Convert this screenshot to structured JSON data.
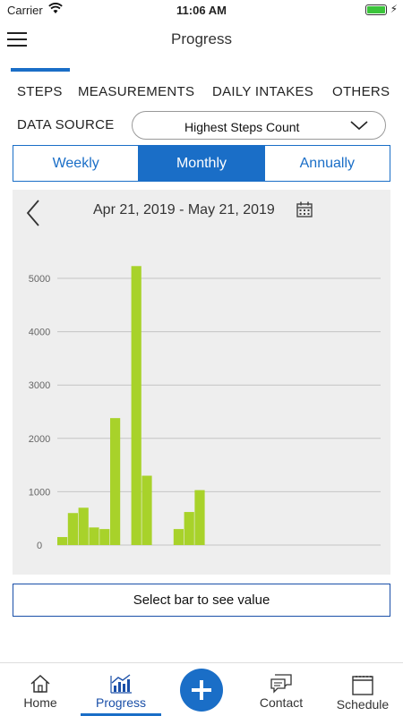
{
  "status_bar": {
    "carrier": "Carrier",
    "time": "11:06 AM"
  },
  "header": {
    "title": "Progress"
  },
  "tabs": [
    {
      "label": "STEPS",
      "active": true
    },
    {
      "label": "MEASUREMENTS"
    },
    {
      "label": "DAILY INTAKES"
    },
    {
      "label": "OTHERS"
    }
  ],
  "data_source": {
    "label": "DATA SOURCE",
    "value": "Highest Steps Count"
  },
  "period": {
    "options": [
      "Weekly",
      "Monthly",
      "Annually"
    ],
    "selected": "Monthly"
  },
  "chart_header": {
    "date_range": "Apr 21, 2019 - May 21, 2019"
  },
  "chart_data": {
    "type": "bar",
    "ylim": [
      0,
      5500
    ],
    "yticks": [
      0,
      1000,
      2000,
      3000,
      4000,
      5000
    ],
    "grid": true,
    "bar_color": "#a8d22a",
    "values": [
      150,
      600,
      700,
      330,
      300,
      2380,
      0,
      5230,
      1300,
      0,
      0,
      300,
      620,
      1030,
      0,
      0,
      0,
      0,
      0,
      0,
      0,
      0,
      0,
      0,
      0,
      0,
      0,
      0,
      0,
      0
    ]
  },
  "select_prompt": "Select bar to see value",
  "bottom_nav": {
    "items": [
      {
        "label": "Home",
        "icon": "home-icon"
      },
      {
        "label": "Progress",
        "icon": "progress-chart-icon",
        "active": true
      },
      {
        "label": "Contact",
        "icon": "chat-icon"
      },
      {
        "label": "Schedule",
        "icon": "calendar-icon"
      }
    ],
    "add_icon": "plus-icon"
  },
  "colors": {
    "accent": "#1a6ec7",
    "bar": "#a8d22a",
    "panel": "#eeeeee"
  }
}
